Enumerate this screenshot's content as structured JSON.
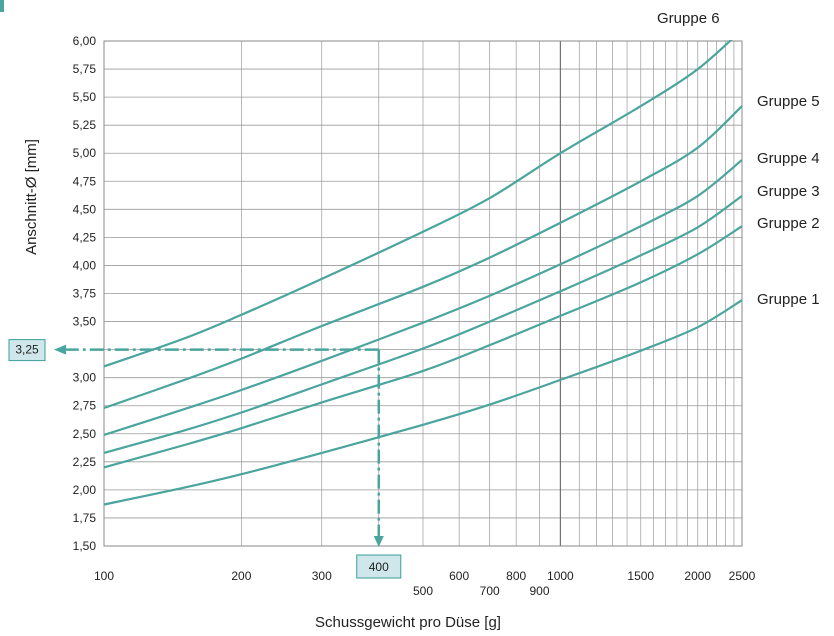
{
  "chart_data": {
    "type": "line",
    "x_scale": "log",
    "xlim": [
      100,
      2500
    ],
    "ylim": [
      1.5,
      6.0
    ],
    "xlabel": "Schussgewicht pro Düse [g]",
    "ylabel": "Anschnitt-Ø [mm]",
    "grid": true,
    "y_ticks": [
      "1,50",
      "1,75",
      "2,00",
      "2,25",
      "2,50",
      "2,75",
      "3,00",
      "3,25",
      "3,50",
      "3,75",
      "4,00",
      "4,25",
      "4,50",
      "4,75",
      "5,00",
      "5,25",
      "5,50",
      "5,75",
      "6,00"
    ],
    "x_ticks_upper": [
      {
        "value": 100,
        "label": "100"
      },
      {
        "value": 200,
        "label": "200"
      },
      {
        "value": 300,
        "label": "300"
      },
      {
        "value": 600,
        "label": "600"
      },
      {
        "value": 800,
        "label": "800"
      },
      {
        "value": 1000,
        "label": "1000"
      },
      {
        "value": 1500,
        "label": "1500"
      },
      {
        "value": 2000,
        "label": "2000"
      },
      {
        "value": 2500,
        "label": "2500"
      }
    ],
    "x_ticks_lower": [
      {
        "value": 500,
        "label": "500"
      },
      {
        "value": 700,
        "label": "700"
      },
      {
        "value": 900,
        "label": "900"
      }
    ],
    "line_color": "#4aa59e",
    "series": [
      {
        "name": "Gruppe 1",
        "x": [
          100,
          150,
          200,
          300,
          500,
          700,
          1000,
          1500,
          2000,
          2500
        ],
        "y": [
          1.87,
          2.02,
          2.14,
          2.33,
          2.58,
          2.76,
          2.98,
          3.24,
          3.45,
          3.69
        ]
      },
      {
        "name": "Gruppe 2",
        "x": [
          100,
          150,
          200,
          300,
          500,
          700,
          1000,
          1500,
          2000,
          2500
        ],
        "y": [
          2.2,
          2.4,
          2.55,
          2.78,
          3.06,
          3.29,
          3.55,
          3.85,
          4.1,
          4.35
        ]
      },
      {
        "name": "Gruppe 3",
        "x": [
          100,
          150,
          200,
          300,
          500,
          700,
          1000,
          1500,
          2000,
          2500
        ],
        "y": [
          2.33,
          2.53,
          2.69,
          2.94,
          3.26,
          3.5,
          3.77,
          4.09,
          4.34,
          4.62
        ]
      },
      {
        "name": "Gruppe 4",
        "x": [
          100,
          150,
          200,
          300,
          500,
          700,
          1000,
          1500,
          2000,
          2500
        ],
        "y": [
          2.49,
          2.72,
          2.89,
          3.15,
          3.49,
          3.73,
          4.01,
          4.35,
          4.62,
          4.94
        ]
      },
      {
        "name": "Gruppe 5",
        "x": [
          100,
          150,
          200,
          300,
          500,
          700,
          1000,
          1500,
          2000,
          2500
        ],
        "y": [
          2.73,
          2.98,
          3.17,
          3.46,
          3.81,
          4.07,
          4.38,
          4.75,
          5.05,
          5.42
        ]
      },
      {
        "name": "Gruppe 6",
        "x": [
          100,
          150,
          200,
          300,
          500,
          700,
          1000,
          1500,
          2000,
          2500
        ],
        "y": [
          3.1,
          3.35,
          3.56,
          3.88,
          4.3,
          4.6,
          5.0,
          5.42,
          5.75,
          6.1
        ]
      }
    ],
    "example": {
      "x_value": 400,
      "x_label": "400",
      "y_value": 3.25,
      "y_label": "3,25",
      "series": "Gruppe 4"
    }
  }
}
